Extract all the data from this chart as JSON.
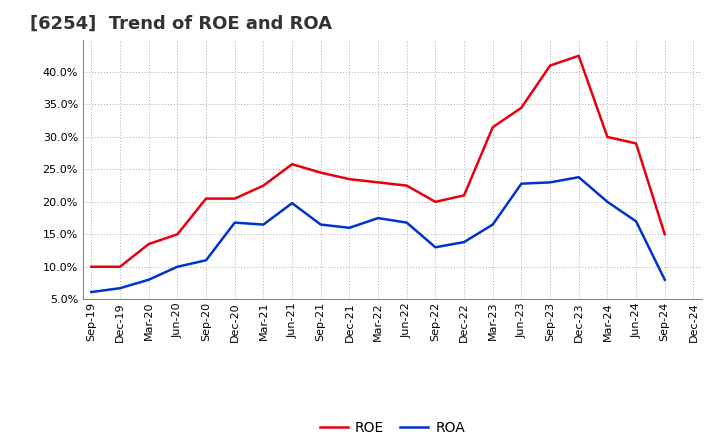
{
  "title": "[6254]  Trend of ROE and ROA",
  "labels": [
    "Sep-19",
    "Dec-19",
    "Mar-20",
    "Jun-20",
    "Sep-20",
    "Dec-20",
    "Mar-21",
    "Jun-21",
    "Sep-21",
    "Dec-21",
    "Mar-22",
    "Jun-22",
    "Sep-22",
    "Dec-22",
    "Mar-23",
    "Jun-23",
    "Sep-23",
    "Dec-23",
    "Mar-24",
    "Jun-24",
    "Sep-24",
    "Dec-24"
  ],
  "roe": [
    10.0,
    10.0,
    13.5,
    15.0,
    20.5,
    20.5,
    22.5,
    25.8,
    24.5,
    23.5,
    23.0,
    22.5,
    20.0,
    21.0,
    31.5,
    34.5,
    41.0,
    42.5,
    30.0,
    29.0,
    15.0,
    null
  ],
  "roa": [
    6.1,
    6.7,
    8.0,
    10.0,
    11.0,
    16.8,
    16.5,
    19.8,
    16.5,
    16.0,
    17.5,
    16.8,
    13.0,
    13.8,
    16.5,
    22.8,
    23.0,
    23.8,
    20.0,
    17.0,
    8.0,
    null
  ],
  "roe_color": "#e8000d",
  "roa_color": "#0033cc",
  "bg_color": "#ffffff",
  "plot_bg_color": "#ffffff",
  "grid_color": "#aaaaaa",
  "ylim": [
    5.0,
    45.0
  ],
  "yticks": [
    5.0,
    10.0,
    15.0,
    20.0,
    25.0,
    30.0,
    35.0,
    40.0
  ],
  "legend_roe": "ROE",
  "legend_roa": "ROA",
  "title_fontsize": 13,
  "axis_fontsize": 8,
  "legend_fontsize": 10
}
